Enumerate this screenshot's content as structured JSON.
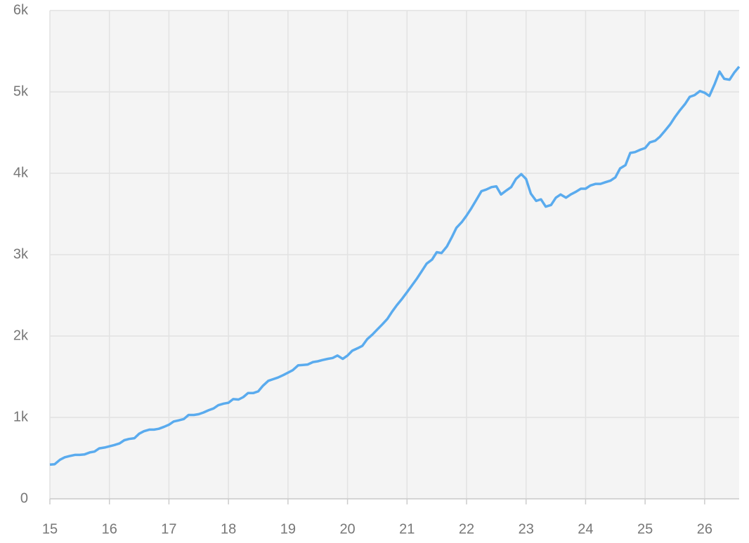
{
  "chart_data": {
    "type": "line",
    "x": [
      15,
      15.08,
      15.17,
      15.25,
      15.33,
      15.42,
      15.5,
      15.58,
      15.67,
      15.75,
      15.83,
      15.92,
      16,
      16.08,
      16.17,
      16.25,
      16.33,
      16.42,
      16.5,
      16.58,
      16.67,
      16.75,
      16.83,
      16.92,
      17,
      17.08,
      17.17,
      17.25,
      17.33,
      17.42,
      17.5,
      17.58,
      17.67,
      17.75,
      17.83,
      17.92,
      18,
      18.08,
      18.17,
      18.25,
      18.33,
      18.42,
      18.5,
      18.58,
      18.67,
      18.75,
      18.83,
      18.92,
      19,
      19.08,
      19.17,
      19.25,
      19.33,
      19.42,
      19.5,
      19.58,
      19.67,
      19.75,
      19.83,
      19.92,
      20,
      20.08,
      20.17,
      20.25,
      20.33,
      20.42,
      20.5,
      20.58,
      20.67,
      20.75,
      20.83,
      20.92,
      21,
      21.08,
      21.17,
      21.25,
      21.33,
      21.42,
      21.5,
      21.58,
      21.67,
      21.75,
      21.83,
      21.92,
      22,
      22.08,
      22.17,
      22.25,
      22.33,
      22.42,
      22.5,
      22.58,
      22.67,
      22.75,
      22.83,
      22.92,
      23,
      23.08,
      23.17,
      23.25,
      23.33,
      23.42,
      23.5,
      23.58,
      23.67,
      23.75,
      23.83,
      23.92,
      24,
      24.08,
      24.17,
      24.25,
      24.33,
      24.42,
      24.5,
      24.58,
      24.67,
      24.75,
      24.83,
      24.92,
      25,
      25.08,
      25.17,
      25.25,
      25.33,
      25.42,
      25.5,
      25.58,
      25.67,
      25.75,
      25.83,
      25.92,
      26,
      26.08,
      26.17,
      26.25,
      26.33,
      26.42,
      26.5,
      26.58
    ],
    "series": [
      {
        "color": "#5aabee",
        "values": [
          420,
          425,
          480,
          510,
          525,
          540,
          540,
          545,
          570,
          580,
          620,
          630,
          645,
          660,
          680,
          720,
          735,
          745,
          800,
          830,
          850,
          850,
          860,
          885,
          910,
          950,
          965,
          980,
          1030,
          1030,
          1040,
          1060,
          1090,
          1110,
          1150,
          1170,
          1180,
          1225,
          1220,
          1250,
          1300,
          1300,
          1320,
          1390,
          1450,
          1470,
          1490,
          1520,
          1550,
          1580,
          1640,
          1645,
          1650,
          1680,
          1690,
          1705,
          1720,
          1730,
          1760,
          1720,
          1760,
          1820,
          1850,
          1880,
          1960,
          2020,
          2080,
          2140,
          2210,
          2300,
          2380,
          2460,
          2540,
          2620,
          2710,
          2800,
          2890,
          2940,
          3030,
          3020,
          3100,
          3210,
          3330,
          3400,
          3480,
          3570,
          3680,
          3780,
          3800,
          3830,
          3840,
          3740,
          3790,
          3830,
          3930,
          3990,
          3930,
          3750,
          3660,
          3680,
          3590,
          3610,
          3700,
          3740,
          3700,
          3740,
          3770,
          3810,
          3810,
          3850,
          3870,
          3870,
          3890,
          3910,
          3950,
          4060,
          4100,
          4250,
          4260,
          4290,
          4310,
          4380,
          4400,
          4450,
          4520,
          4600,
          4690,
          4770,
          4850,
          4940,
          4960,
          5010,
          4990,
          4950,
          5100,
          5250,
          5160,
          5150,
          5240,
          5310
        ]
      }
    ],
    "xlim": [
      15,
      26.58
    ],
    "xticks": [
      15,
      16,
      17,
      18,
      19,
      20,
      21,
      22,
      23,
      24,
      25,
      26
    ],
    "ylim": [
      0,
      6000
    ],
    "yticks": [
      0,
      {
        "value": 1000,
        "label": "1k"
      },
      {
        "value": 2000,
        "label": "2k"
      },
      {
        "value": 3000,
        "label": "3k"
      },
      {
        "value": 4000,
        "label": "4k"
      },
      {
        "value": 5000,
        "label": "5k"
      },
      {
        "value": 6000,
        "label": "6k"
      }
    ],
    "grid": true
  }
}
